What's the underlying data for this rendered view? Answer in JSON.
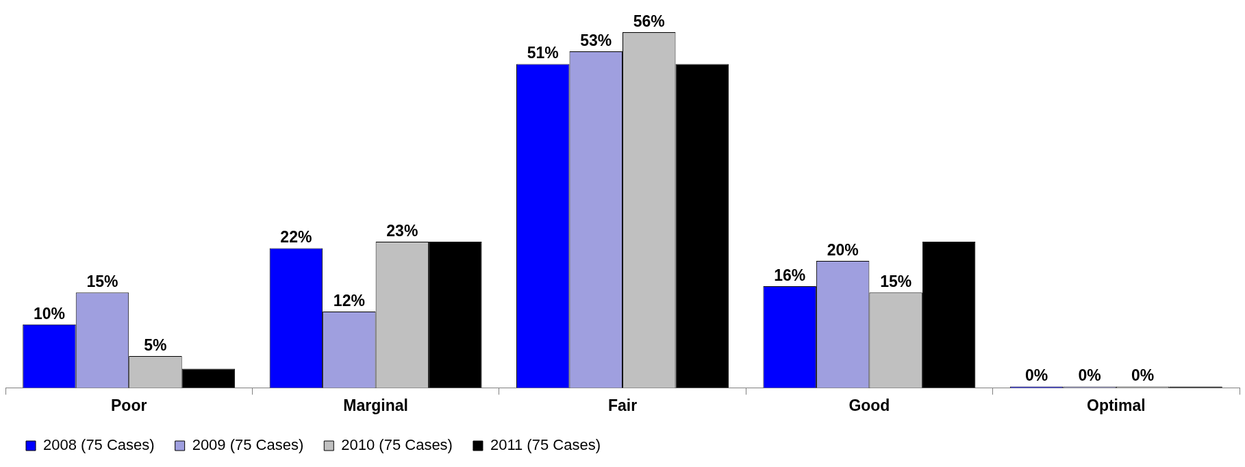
{
  "chart_data": {
    "type": "bar",
    "categories": [
      "Poor",
      "Marginal",
      "Fair",
      "Good",
      "Optimal"
    ],
    "series": [
      {
        "name": "2008 (75 Cases)",
        "color": "#0000ff",
        "values": [
          10,
          22,
          51,
          16,
          0
        ],
        "value_labels": [
          "10%",
          "22%",
          "51%",
          "16%",
          "0%"
        ]
      },
      {
        "name": "2009 (75 Cases)",
        "color": "#9f9fdf",
        "values": [
          15,
          12,
          53,
          20,
          0
        ],
        "value_labels": [
          "15%",
          "12%",
          "53%",
          "20%",
          "0%"
        ]
      },
      {
        "name": "2010 (75 Cases)",
        "color": "#c0c0c0",
        "values": [
          5,
          23,
          56,
          15,
          0
        ],
        "value_labels": [
          "5%",
          "23%",
          "56%",
          "15%",
          "0%"
        ]
      },
      {
        "name": "2011 (75 Cases)",
        "color": "#000000",
        "values": [
          3,
          23,
          51,
          23,
          0
        ],
        "value_labels": [
          null,
          null,
          null,
          null,
          null
        ]
      }
    ],
    "legend": "bottom",
    "grid": false,
    "tick_labels": "x"
  }
}
